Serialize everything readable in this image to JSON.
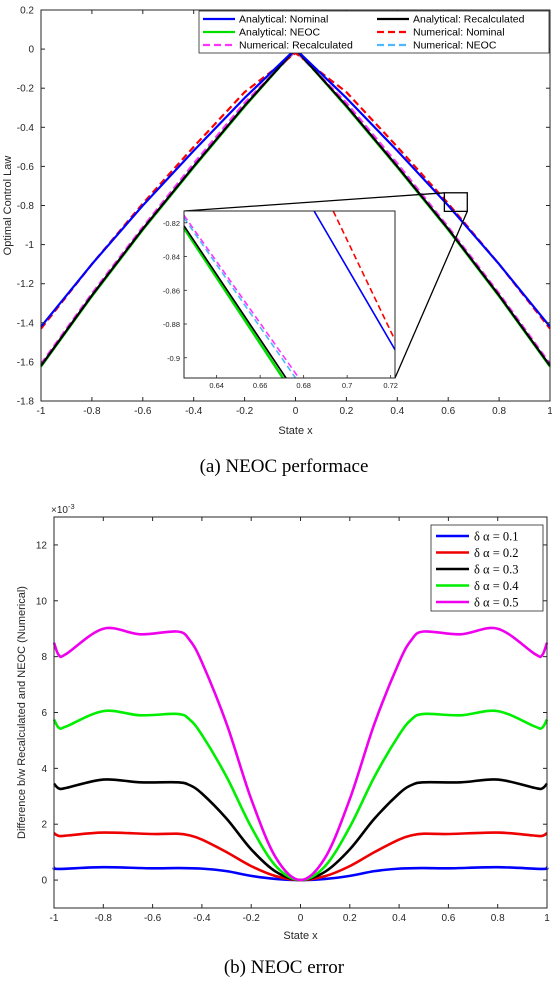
{
  "chart_data": [
    {
      "type": "line",
      "caption": "(a) NEOC performace",
      "xlabel": "State x",
      "ylabel": "Optimal Control Law",
      "xlim": [
        -1,
        1
      ],
      "ylim": [
        -1.8,
        0.2
      ],
      "xticks": [
        "-1",
        "-0.8",
        "-0.6",
        "-0.4",
        "-0.2",
        "0",
        "0.2",
        "0.4",
        "0.6",
        "0.8",
        "1"
      ],
      "yticks": [
        "0.2",
        "0",
        "-0.2",
        "-0.4",
        "-0.6",
        "-0.8",
        "-1",
        "-1.2",
        "-1.4",
        "-1.6",
        "-1.8"
      ],
      "grid": false,
      "legend_position": "top-right",
      "legend_columns": 2,
      "series": [
        {
          "name": "Analytical: Nominal",
          "color": "#0000ff",
          "style": "solid",
          "x": [
            -1,
            -0.8,
            -0.6,
            -0.4,
            -0.2,
            0,
            0.2,
            0.4,
            0.6,
            0.8,
            1
          ],
          "y": [
            -1.42,
            -1.1,
            -0.8,
            -0.52,
            -0.25,
            0,
            -0.25,
            -0.52,
            -0.8,
            -1.1,
            -1.42
          ]
        },
        {
          "name": "Analytical: Recalculated",
          "color": "#000000",
          "style": "solid",
          "x": [
            -1,
            -0.8,
            -0.6,
            -0.4,
            -0.2,
            0,
            0.2,
            0.4,
            0.6,
            0.8,
            1
          ],
          "y": [
            -1.62,
            -1.26,
            -0.92,
            -0.6,
            -0.29,
            0,
            -0.29,
            -0.6,
            -0.92,
            -1.26,
            -1.62
          ]
        },
        {
          "name": "Analytical: NEOC",
          "color": "#00dd00",
          "style": "solid",
          "x": [
            -1,
            -0.8,
            -0.6,
            -0.4,
            -0.2,
            0,
            0.2,
            0.4,
            0.6,
            0.8,
            1
          ],
          "y": [
            -1.625,
            -1.265,
            -0.925,
            -0.605,
            -0.295,
            0,
            -0.295,
            -0.605,
            -0.925,
            -1.265,
            -1.625
          ]
        },
        {
          "name": "Numerical: Nominal",
          "color": "#ff0000",
          "style": "dashed",
          "x": [
            -1,
            -0.8,
            -0.6,
            -0.4,
            -0.2,
            0,
            0.2,
            0.4,
            0.6,
            0.8,
            1
          ],
          "y": [
            -1.43,
            -1.1,
            -0.79,
            -0.5,
            -0.22,
            -0.02,
            -0.22,
            -0.5,
            -0.79,
            -1.1,
            -1.43
          ]
        },
        {
          "name": "Numerical: Recalculated",
          "color": "#ff33ff",
          "style": "dashed",
          "x": [
            -1,
            -0.8,
            -0.6,
            -0.4,
            -0.2,
            0,
            0.2,
            0.4,
            0.6,
            0.8,
            1
          ],
          "y": [
            -1.61,
            -1.25,
            -0.91,
            -0.585,
            -0.275,
            -0.01,
            -0.275,
            -0.585,
            -0.91,
            -1.25,
            -1.61
          ]
        },
        {
          "name": "Numerical: NEOC",
          "color": "#4db8ff",
          "style": "dashed",
          "x": [
            -1,
            -0.8,
            -0.6,
            -0.4,
            -0.2,
            0,
            0.2,
            0.4,
            0.6,
            0.8,
            1
          ],
          "y": [
            -1.615,
            -1.255,
            -0.915,
            -0.59,
            -0.28,
            -0.01,
            -0.28,
            -0.59,
            -0.915,
            -1.255,
            -1.615
          ]
        }
      ],
      "inset": {
        "xlim": [
          0.625,
          0.722
        ],
        "ylim": [
          -0.912,
          -0.813
        ],
        "xticks": [
          "0.64",
          "0.66",
          "0.68",
          "0.7",
          "0.72"
        ],
        "yticks": [
          "-0.82",
          "-0.84",
          "-0.86",
          "-0.88",
          "-0.9"
        ],
        "series": [
          {
            "name": "Analytical: Nominal",
            "x": [
              0.6848,
              0.722
            ],
            "y": [
              -0.813,
              -0.8952
            ]
          },
          {
            "name": "Numerical: Nominal",
            "x": [
              0.6936,
              0.722
            ],
            "y": [
              -0.813,
              -0.8896
            ]
          },
          {
            "name": "Analytical: NEOC",
            "x": [
              0.625,
              0.6705
            ],
            "y": [
              -0.8232,
              -0.912
            ]
          },
          {
            "name": "Analytical: Recalculated",
            "x": [
              0.625,
              0.6719
            ],
            "y": [
              -0.8218,
              -0.912
            ]
          },
          {
            "name": "Numerical: Recalculated",
            "x": [
              0.625,
              0.6778
            ],
            "y": [
              -0.8156,
              -0.912
            ]
          },
          {
            "name": "Numerical: NEOC",
            "x": [
              0.625,
              0.6763
            ],
            "y": [
              -0.8171,
              -0.912
            ]
          }
        ]
      }
    },
    {
      "type": "line",
      "caption": "(b) NEOC error",
      "xlabel": "State x",
      "ylabel": "Difference b/w Recalculated and NEOC (Numerical)",
      "multiplier": "×10",
      "multiplier_exp": "-3",
      "xlim": [
        -1,
        1
      ],
      "ylim": [
        -1,
        13
      ],
      "xticks": [
        "-1",
        "-0.8",
        "-0.6",
        "-0.4",
        "-0.2",
        "0",
        "0.2",
        "0.4",
        "0.6",
        "0.8",
        "1"
      ],
      "yticks": [
        "12",
        "10",
        "8",
        "6",
        "4",
        "2",
        "0"
      ],
      "grid": false,
      "legend_position": "top-right",
      "series": [
        {
          "name": "δ α = 0.1",
          "color": "#0000ff",
          "x": [
            -1,
            -0.98,
            -0.8,
            -0.6,
            -0.5,
            -0.4,
            -0.3,
            -0.2,
            -0.1,
            0,
            0.1,
            0.2,
            0.3,
            0.4,
            0.5,
            0.6,
            0.8,
            0.98,
            1
          ],
          "y": [
            0.45,
            0.4,
            0.46,
            0.42,
            0.43,
            0.41,
            0.32,
            0.15,
            0.04,
            0,
            0.04,
            0.15,
            0.32,
            0.41,
            0.43,
            0.42,
            0.46,
            0.4,
            0.45
          ]
        },
        {
          "name": "δ α = 0.2",
          "color": "#ee0000",
          "x": [
            -1,
            -0.98,
            -0.94,
            -0.8,
            -0.6,
            -0.5,
            -0.45,
            -0.4,
            -0.3,
            -0.2,
            -0.1,
            0,
            0.1,
            0.2,
            0.3,
            0.4,
            0.45,
            0.5,
            0.6,
            0.8,
            0.94,
            0.98,
            1
          ],
          "y": [
            1.68,
            1.58,
            1.6,
            1.7,
            1.65,
            1.66,
            1.6,
            1.45,
            1.0,
            0.5,
            0.14,
            0,
            0.14,
            0.5,
            1.0,
            1.45,
            1.6,
            1.66,
            1.65,
            1.7,
            1.6,
            1.58,
            1.68
          ]
        },
        {
          "name": "δ α = 0.3",
          "color": "#000000",
          "x": [
            -1,
            -0.98,
            -0.95,
            -0.8,
            -0.65,
            -0.5,
            -0.45,
            -0.4,
            -0.3,
            -0.2,
            -0.1,
            0,
            0.1,
            0.2,
            0.3,
            0.4,
            0.45,
            0.5,
            0.65,
            0.8,
            0.95,
            0.98,
            1
          ],
          "y": [
            3.45,
            3.28,
            3.3,
            3.6,
            3.5,
            3.5,
            3.4,
            3.1,
            2.2,
            1.1,
            0.3,
            0,
            0.3,
            1.1,
            2.2,
            3.1,
            3.4,
            3.5,
            3.5,
            3.6,
            3.3,
            3.28,
            3.45
          ]
        },
        {
          "name": "δ α = 0.4",
          "color": "#00ee00",
          "x": [
            -1,
            -0.98,
            -0.95,
            -0.8,
            -0.65,
            -0.5,
            -0.45,
            -0.4,
            -0.3,
            -0.2,
            -0.1,
            0,
            0.1,
            0.2,
            0.3,
            0.4,
            0.45,
            0.5,
            0.65,
            0.8,
            0.95,
            0.98,
            1
          ],
          "y": [
            5.75,
            5.45,
            5.5,
            6.05,
            5.9,
            5.95,
            5.75,
            5.2,
            3.7,
            1.9,
            0.5,
            0,
            0.5,
            1.9,
            3.7,
            5.2,
            5.75,
            5.95,
            5.9,
            6.05,
            5.5,
            5.45,
            5.75
          ]
        },
        {
          "name": "δ α = 0.5",
          "color": "#ee00ee",
          "x": [
            -1,
            -0.98,
            -0.95,
            -0.8,
            -0.65,
            -0.5,
            -0.45,
            -0.4,
            -0.3,
            -0.2,
            -0.1,
            0,
            0.1,
            0.2,
            0.3,
            0.4,
            0.45,
            0.5,
            0.65,
            0.8,
            0.95,
            0.98,
            1
          ],
          "y": [
            8.5,
            8.05,
            8.1,
            9.0,
            8.8,
            8.9,
            8.6,
            7.8,
            5.6,
            2.9,
            0.8,
            0,
            0.8,
            2.9,
            5.6,
            7.8,
            8.6,
            8.9,
            8.8,
            9.0,
            8.1,
            8.05,
            8.5
          ]
        }
      ]
    }
  ]
}
